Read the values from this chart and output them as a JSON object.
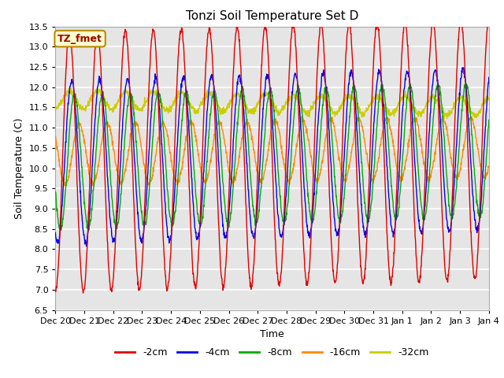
{
  "title": "Tonzi Soil Temperature Set D",
  "xlabel": "Time",
  "ylabel": "Soil Temperature (C)",
  "ylim": [
    6.5,
    13.5
  ],
  "x_tick_labels": [
    "Dec 20",
    "Dec 21",
    "Dec 22",
    "Dec 23",
    "Dec 24",
    "Dec 25",
    "Dec 26",
    "Dec 27",
    "Dec 28",
    "Dec 29",
    "Dec 30",
    "Dec 31",
    "Jan 1",
    "Jan 2",
    "Jan 3",
    "Jan 4"
  ],
  "annotation_text": "TZ_fmet",
  "annotation_bg": "#ffffcc",
  "annotation_border": "#bb8800",
  "annotation_text_color": "#990000",
  "colors": {
    "-2cm": "#dd0000",
    "-4cm": "#0000ee",
    "-8cm": "#00aa00",
    "-16cm": "#ff8800",
    "-32cm": "#cccc00"
  },
  "bg_color": "#e5e5e5",
  "grid_color": "#ffffff",
  "n_days": 15.5,
  "samples_per_day": 96,
  "depth_params": {
    "-2cm": {
      "amp": 3.2,
      "mean": 10.15,
      "phase_shift": 0.0,
      "trend": 0.02
    },
    "-4cm": {
      "amp": 2.0,
      "mean": 10.15,
      "phase_shift": 0.08,
      "trend": 0.02
    },
    "-8cm": {
      "amp": 1.65,
      "mean": 10.15,
      "phase_shift": 0.18,
      "trend": 0.02
    },
    "-16cm": {
      "amp": 0.75,
      "mean": 10.35,
      "phase_shift": 0.35,
      "trend": 0.01
    },
    "-32cm": {
      "amp": 0.22,
      "mean": 11.7,
      "phase_shift": 0.0,
      "trend": -0.012
    }
  },
  "yticks": [
    6.5,
    7.0,
    7.5,
    8.0,
    8.5,
    9.0,
    9.5,
    10.0,
    10.5,
    11.0,
    11.5,
    12.0,
    12.5,
    13.0,
    13.5
  ]
}
